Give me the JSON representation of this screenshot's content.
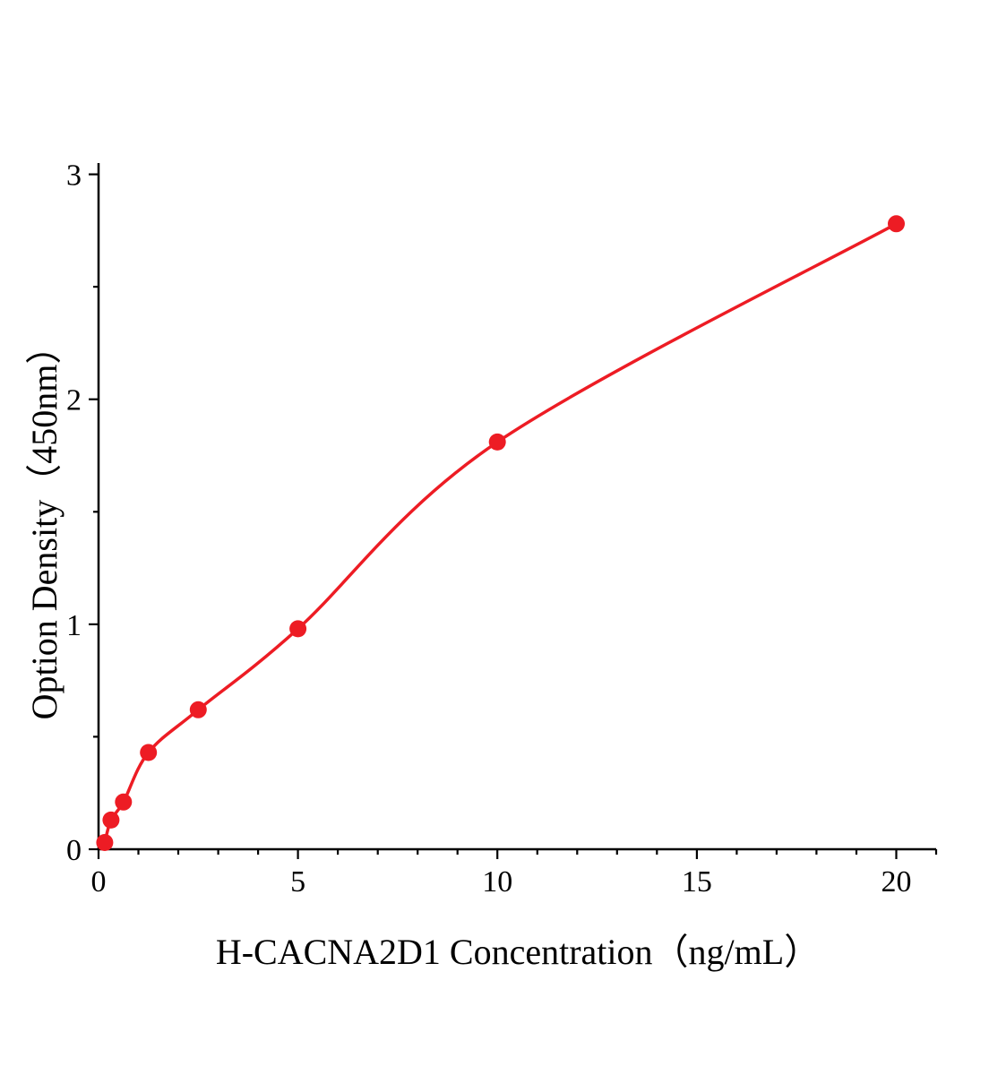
{
  "page": {
    "background": "#ffffff"
  },
  "chart_data": {
    "type": "scatter",
    "title": "",
    "xlabel": "H-CACNA2D1 Concentration（ng/mL）",
    "ylabel": "Option Density（450nm）",
    "x": [
      0.156,
      0.313,
      0.625,
      1.25,
      2.5,
      5,
      10,
      20
    ],
    "y": [
      0.03,
      0.13,
      0.21,
      0.43,
      0.62,
      0.98,
      1.81,
      2.78
    ],
    "fit": "smooth curve through data points",
    "xlim": [
      0,
      21
    ],
    "ylim": [
      0,
      3.05
    ],
    "x_ticks": [
      0,
      5,
      10,
      15,
      20
    ],
    "x_tick_labels": [
      "0",
      "5",
      "10",
      "15",
      "20"
    ],
    "y_ticks": [
      0,
      1,
      2,
      3
    ],
    "y_tick_labels": [
      "0",
      "1",
      "2",
      "3"
    ],
    "x_minor_step": 1,
    "y_minor_step": 0.5,
    "grid": false,
    "legend": false,
    "marker_color": "#ed1c24",
    "line_color": "#ed1c24",
    "axis_color": "#000000",
    "marker_radius": 9.5
  }
}
